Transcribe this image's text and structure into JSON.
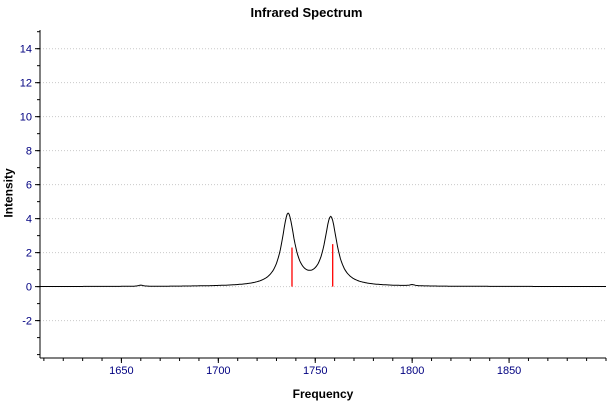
{
  "chart_data": {
    "type": "line",
    "title": "Infrared Spectrum",
    "xlabel": "Frequency",
    "ylabel": "Intensity",
    "xlim": [
      1608,
      1900
    ],
    "ylim": [
      -4.2,
      15.1
    ],
    "x_ticks": [
      1650,
      1700,
      1750,
      1800,
      1850
    ],
    "x_minor_step": 10,
    "y_ticks": [
      -2,
      0,
      2,
      4,
      6,
      8,
      10,
      12,
      14
    ],
    "y_minor_step": 1,
    "grid": "horizontal-dotted",
    "legend": "none",
    "baseline": 0,
    "peaks": [
      {
        "center": 1736,
        "height": 4.2,
        "width": 4
      },
      {
        "center": 1758,
        "height": 4.0,
        "width": 4
      },
      {
        "center": 1660,
        "height": 0.07,
        "width": 1.5
      },
      {
        "center": 1800,
        "height": 0.07,
        "width": 1.5
      }
    ],
    "sticks": [
      {
        "x": 1738,
        "height": 2.3
      },
      {
        "x": 1759,
        "height": 2.5
      }
    ],
    "colors": {
      "curve": "#000000",
      "stick": "#ff0000",
      "grid": "#c9c9c9",
      "axis": "#000000",
      "tick_label": "#000080",
      "background": "#ffffff"
    }
  }
}
